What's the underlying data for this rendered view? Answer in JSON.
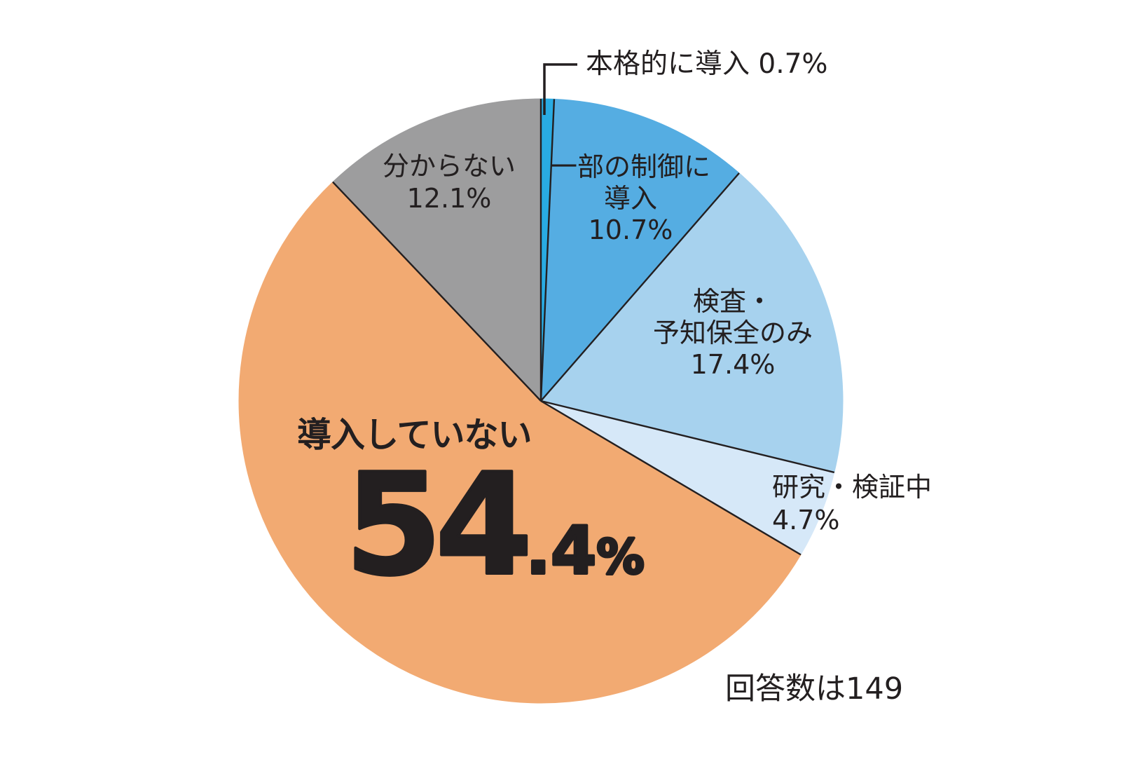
{
  "chart_data": {
    "type": "pie",
    "unit": "%",
    "start": "12-o'clock, clockwise",
    "respondents_note": "回答数は149",
    "respondents": 149,
    "line_color": "#231f20",
    "background_color": "#ffffff",
    "slices": [
      {
        "label": "本格的に導入",
        "value": 0.7,
        "color": "#29abe2"
      },
      {
        "label": "一部の制御に導入",
        "value": 10.7,
        "color": "#55ade2"
      },
      {
        "label": "検査・予知保全のみ",
        "value": 17.4,
        "color": "#a7d2ee"
      },
      {
        "label": "研究・検証中",
        "value": 4.7,
        "color": "#d6e8f8"
      },
      {
        "label": "導入していない",
        "value": 54.4,
        "color": "#f2aa72"
      },
      {
        "label": "分からない",
        "value": 12.1,
        "color": "#9d9d9e"
      }
    ]
  },
  "labels": {
    "callout_full": "本格的に導入 0.7%",
    "partial": {
      "l1": "一部の制御に",
      "l2": "導入",
      "pct": "10.7%"
    },
    "inspection": {
      "l1": "検査・",
      "l2": "予知保全のみ",
      "pct": "17.4%"
    },
    "research": {
      "l1": "研究・検証中",
      "pct": "4.7%"
    },
    "none": {
      "title": "導入していない",
      "int": "54",
      "dec": ".4",
      "sign": "%"
    },
    "unknown": {
      "l1": "分からない",
      "pct": "12.1%"
    },
    "note": "回答数は149"
  }
}
